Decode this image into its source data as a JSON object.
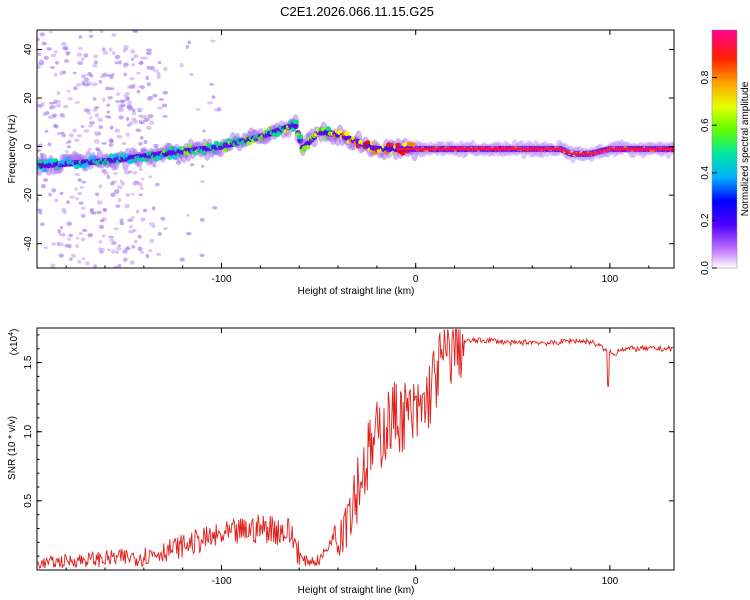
{
  "title": "C2E1.2026.066.11.15.G25",
  "chart_data": [
    {
      "type": "heatmap",
      "xlabel": "Height of straight line (km)",
      "ylabel": "Frequency (Hz)",
      "xlim": [
        -195,
        133
      ],
      "ylim": [
        -50,
        48
      ],
      "x_ticks": [
        -100,
        0,
        100
      ],
      "y_ticks": [
        -40,
        -20,
        0,
        20,
        40
      ],
      "colorbar_label": "Normalized spectral amplitude",
      "colorbar_ticks": [
        0.0,
        0.2,
        0.4,
        0.6,
        0.8
      ],
      "colorbar_range": [
        0,
        1
      ],
      "colorscale": [
        "#ffffff",
        "#8a00ff",
        "#0000ff",
        "#00c8ff",
        "#00e08a",
        "#7fff00",
        "#ffff00",
        "#ff8000",
        "#ff0000",
        "#ff0090"
      ],
      "ridge": {
        "x": [
          -195,
          -180,
          -160,
          -140,
          -120,
          -100,
          -80,
          -62,
          -58,
          -50,
          -40,
          -30,
          -20,
          -10,
          0,
          20,
          50,
          75,
          80,
          90,
          100,
          133
        ],
        "freq": [
          -8,
          -7,
          -6,
          -4,
          -2,
          0,
          4,
          9,
          -1,
          6,
          5,
          2,
          -1,
          -1,
          -1,
          -1,
          -1,
          -1,
          -3,
          -3,
          -1,
          -1
        ],
        "amplitude": [
          0.4,
          0.42,
          0.45,
          0.45,
          0.5,
          0.5,
          0.55,
          0.6,
          0.55,
          0.6,
          0.7,
          0.78,
          0.85,
          0.85,
          0.9,
          0.95,
          0.98,
          0.95,
          0.9,
          0.92,
          0.95,
          0.97
        ]
      }
    },
    {
      "type": "line",
      "xlabel": "Height of straight line (km)",
      "ylabel": "SNR (10 * v/v)",
      "scale_label": "(x10",
      "scale_exp": "4",
      "xlim": [
        -195,
        133
      ],
      "ylim": [
        0,
        1.75
      ],
      "x_ticks": [
        -100,
        0,
        100
      ],
      "y_ticks": [
        0.5,
        1.0,
        1.5
      ],
      "y_tick_labels": [
        "0.5",
        "1.0",
        "1.5"
      ],
      "color": "#e0201c",
      "series": [
        {
          "name": "SNR",
          "x": [
            -195,
            -175,
            -155,
            -140,
            -125,
            -110,
            -95,
            -85,
            -75,
            -65,
            -58,
            -50,
            -45,
            -40,
            -35,
            -30,
            -25,
            -20,
            -15,
            -10,
            -5,
            0,
            5,
            10,
            15,
            20,
            25,
            30,
            40,
            50,
            60,
            70,
            80,
            90,
            95,
            98,
            100,
            102,
            105,
            110,
            120,
            133
          ],
          "y": [
            0.03,
            0.05,
            0.06,
            0.07,
            0.12,
            0.18,
            0.22,
            0.25,
            0.26,
            0.22,
            0.05,
            0.05,
            0.15,
            0.32,
            0.45,
            0.62,
            0.8,
            0.95,
            1.05,
            1.12,
            1.12,
            1.1,
            1.2,
            1.4,
            1.55,
            1.62,
            1.65,
            1.66,
            1.66,
            1.64,
            1.65,
            1.64,
            1.66,
            1.65,
            1.62,
            1.58,
            1.58,
            1.55,
            1.6,
            1.6,
            1.6,
            1.6
          ]
        }
      ]
    }
  ]
}
